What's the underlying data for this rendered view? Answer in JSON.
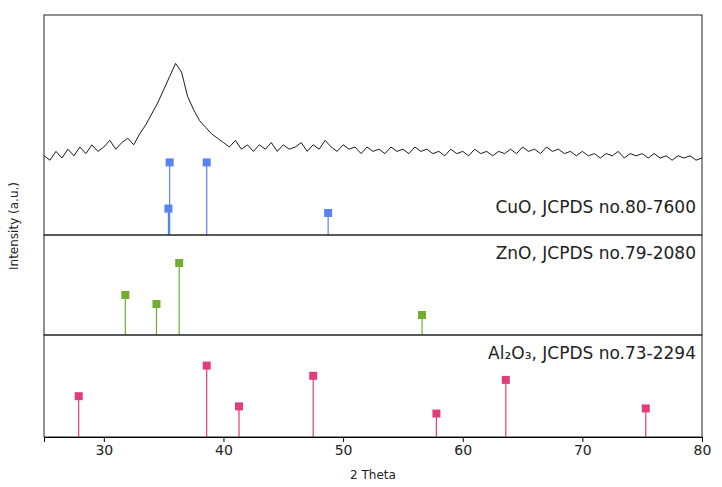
{
  "chart_data": [
    {
      "type": "line",
      "xlim": [
        25,
        80
      ],
      "ylim": [
        0,
        100
      ],
      "tick_labels": false,
      "ylabel": "Intensity (a.u.)",
      "series": [
        {
          "type": "line",
          "color": "#000000",
          "x": [
            25,
            25.5,
            26,
            26.5,
            27,
            27.5,
            28,
            28.5,
            29,
            29.5,
            30,
            30.5,
            31,
            31.5,
            32,
            32.5,
            33,
            33.5,
            34,
            34.5,
            35,
            35.5,
            36,
            36.5,
            37,
            37.5,
            38,
            38.5,
            39,
            39.5,
            40,
            40.5,
            41,
            41.5,
            42,
            42.5,
            43,
            43.5,
            44,
            44.5,
            45,
            45.5,
            46,
            46.5,
            47,
            47.5,
            48,
            48.5,
            49,
            49.5,
            50,
            50.5,
            51,
            51.5,
            52,
            52.5,
            53,
            53.5,
            54,
            54.5,
            55,
            55.5,
            56,
            56.5,
            57,
            57.5,
            58,
            58.5,
            59,
            59.5,
            60,
            60.5,
            61,
            61.5,
            62,
            62.5,
            63,
            63.5,
            64,
            64.5,
            65,
            65.5,
            66,
            66.5,
            67,
            67.5,
            68,
            68.5,
            69,
            69.5,
            70,
            70.5,
            71,
            71.5,
            72,
            72.5,
            73,
            73.5,
            74,
            74.5,
            75,
            75.5,
            76,
            76.5,
            77,
            77.5,
            78,
            78.5,
            79,
            79.5,
            80
          ],
          "values": [
            36,
            34,
            38,
            35,
            39,
            36,
            40,
            37,
            41,
            38,
            40,
            43,
            39,
            42,
            44,
            41,
            46,
            50,
            55,
            60,
            66,
            72,
            78,
            74,
            63,
            57,
            52,
            49,
            46,
            44,
            42,
            40,
            43,
            39,
            41,
            38,
            41,
            39,
            42,
            38,
            41,
            39,
            40,
            42,
            38,
            41,
            39,
            43,
            40,
            38,
            41,
            39,
            40,
            37,
            40,
            38,
            39,
            37,
            40,
            38,
            39,
            37,
            40,
            38,
            39,
            37,
            38,
            36,
            39,
            37,
            38,
            36,
            39,
            37,
            38,
            36,
            38,
            37,
            39,
            37,
            40,
            38,
            39,
            37,
            40,
            38,
            39,
            37,
            38,
            36,
            38,
            36,
            37,
            35,
            37,
            36,
            38,
            35,
            37,
            36,
            37,
            35,
            37,
            35,
            36,
            34,
            36,
            35,
            36,
            34,
            35
          ]
        },
        {
          "type": "stem",
          "name": "CuO, JCPDS no.80-7600",
          "color": "#5b82ef",
          "marker": "square",
          "x": [
            35.5,
            35.4,
            38.6,
            48.75
          ],
          "values": [
            33,
            12,
            33,
            10
          ]
        }
      ]
    },
    {
      "type": "stem",
      "xlim": [
        25,
        80
      ],
      "ylim": [
        0,
        100
      ],
      "tick_labels": false,
      "series": [
        {
          "type": "stem",
          "name": "ZnO, JCPDS no.79-2080",
          "color": "#6fae2e",
          "marker": "square",
          "x": [
            31.8,
            34.4,
            36.3,
            56.6
          ],
          "values": [
            40,
            31,
            72,
            20
          ]
        }
      ]
    },
    {
      "type": "stem",
      "xlim": [
        25,
        80
      ],
      "ylim": [
        0,
        100
      ],
      "tick_labels": "x",
      "xticks": [
        30,
        40,
        50,
        60,
        70,
        80
      ],
      "xlabel": "2 Theta",
      "series": [
        {
          "type": "stem",
          "name": "Al₂O₃, JCPDS no.73-2294",
          "color": "#e23c7c",
          "marker": "square",
          "x": [
            27.9,
            38.6,
            41.3,
            47.5,
            57.8,
            63.6,
            75.3
          ],
          "values": [
            40,
            70,
            30,
            60,
            23,
            56,
            28
          ]
        }
      ]
    }
  ]
}
